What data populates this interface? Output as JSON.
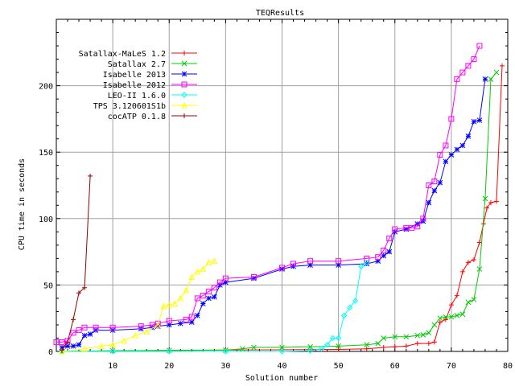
{
  "chart_data": {
    "type": "line",
    "title": "TEQResults",
    "xlabel": "Solution number",
    "ylabel": "CPU time in seconds",
    "xlim": [
      0,
      80
    ],
    "ylim": [
      0,
      250
    ],
    "x_ticks": [
      10,
      20,
      30,
      40,
      50,
      60,
      70,
      80
    ],
    "y_ticks": [
      0,
      50,
      100,
      150,
      200
    ],
    "grid": true,
    "legend_position": "top-left",
    "series": [
      {
        "name": "Satallax-MaLeS 1.2",
        "color": "#ff0000",
        "marker": "plus",
        "points": [
          [
            1,
            0
          ],
          [
            10,
            0.5
          ],
          [
            20,
            0.8
          ],
          [
            30,
            1
          ],
          [
            40,
            1.2
          ],
          [
            50,
            1.5
          ],
          [
            55,
            2
          ],
          [
            58,
            3
          ],
          [
            60,
            3.5
          ],
          [
            62,
            4
          ],
          [
            64,
            6
          ],
          [
            66,
            6
          ],
          [
            67,
            7
          ],
          [
            68,
            22
          ],
          [
            69,
            24
          ],
          [
            70,
            35
          ],
          [
            71,
            42
          ],
          [
            72,
            60
          ],
          [
            73,
            67
          ],
          [
            74,
            69
          ],
          [
            75,
            82
          ],
          [
            75.7,
            96
          ],
          [
            76.3,
            108
          ],
          [
            77,
            112
          ],
          [
            78,
            113
          ],
          [
            79,
            215
          ]
        ]
      },
      {
        "name": "Satallax 2.7",
        "color": "#00cc00",
        "marker": "cross",
        "points": [
          [
            1,
            0
          ],
          [
            10,
            0.5
          ],
          [
            20,
            0.8
          ],
          [
            30,
            1
          ],
          [
            33,
            2
          ],
          [
            35,
            3
          ],
          [
            40,
            3
          ],
          [
            45,
            3.5
          ],
          [
            50,
            4
          ],
          [
            55,
            5
          ],
          [
            57,
            6
          ],
          [
            58,
            10
          ],
          [
            60,
            11
          ],
          [
            62,
            11
          ],
          [
            64,
            12
          ],
          [
            65,
            12.5
          ],
          [
            66,
            14
          ],
          [
            67,
            20
          ],
          [
            68,
            25
          ],
          [
            69,
            26
          ],
          [
            70,
            26
          ],
          [
            71,
            27
          ],
          [
            72,
            28
          ],
          [
            73,
            37
          ],
          [
            74,
            39
          ],
          [
            75,
            62
          ],
          [
            76,
            115
          ],
          [
            77,
            205
          ],
          [
            78,
            210
          ]
        ]
      },
      {
        "name": "Isabelle 2013",
        "color": "#0000ff",
        "marker": "star",
        "points": [
          [
            1,
            3
          ],
          [
            2,
            4
          ],
          [
            3,
            4
          ],
          [
            4,
            5
          ],
          [
            5,
            12
          ],
          [
            6,
            13
          ],
          [
            7,
            16
          ],
          [
            10,
            16
          ],
          [
            15,
            17
          ],
          [
            17,
            18
          ],
          [
            18,
            19
          ],
          [
            20,
            20
          ],
          [
            22,
            21
          ],
          [
            24,
            22
          ],
          [
            25,
            27
          ],
          [
            26,
            36
          ],
          [
            27,
            40
          ],
          [
            28,
            41
          ],
          [
            29,
            50
          ],
          [
            30,
            52
          ],
          [
            35,
            55
          ],
          [
            40,
            62
          ],
          [
            42,
            64
          ],
          [
            45,
            65
          ],
          [
            50,
            65
          ],
          [
            55,
            66
          ],
          [
            57,
            68
          ],
          [
            58,
            72
          ],
          [
            59,
            75
          ],
          [
            60,
            90
          ],
          [
            62,
            92
          ],
          [
            64,
            96
          ],
          [
            65,
            98
          ],
          [
            66,
            112
          ],
          [
            67,
            121
          ],
          [
            68,
            127
          ],
          [
            69,
            143
          ],
          [
            70,
            148
          ],
          [
            71,
            152
          ],
          [
            72,
            155
          ],
          [
            73,
            162
          ],
          [
            74,
            173
          ],
          [
            75,
            174
          ],
          [
            76,
            205
          ]
        ]
      },
      {
        "name": "Isabelle 2012",
        "color": "#ff00ff",
        "marker": "square",
        "points": [
          [
            0,
            7
          ],
          [
            1,
            7
          ],
          [
            2,
            8
          ],
          [
            3,
            14
          ],
          [
            4,
            16
          ],
          [
            5,
            18
          ],
          [
            7,
            18
          ],
          [
            10,
            18
          ],
          [
            15,
            19
          ],
          [
            17,
            20
          ],
          [
            18,
            21
          ],
          [
            20,
            23
          ],
          [
            23,
            24
          ],
          [
            24,
            26
          ],
          [
            25,
            40
          ],
          [
            26,
            42
          ],
          [
            27,
            45
          ],
          [
            28,
            48
          ],
          [
            29,
            52
          ],
          [
            30,
            55
          ],
          [
            35,
            56
          ],
          [
            40,
            63
          ],
          [
            42,
            66
          ],
          [
            45,
            68
          ],
          [
            50,
            68
          ],
          [
            55,
            70
          ],
          [
            57,
            71
          ],
          [
            58,
            76
          ],
          [
            59,
            85
          ],
          [
            60,
            92
          ],
          [
            62,
            93
          ],
          [
            63,
            93
          ],
          [
            64,
            94
          ],
          [
            65,
            100
          ],
          [
            66,
            125
          ],
          [
            67,
            128
          ],
          [
            68,
            148
          ],
          [
            69,
            155
          ],
          [
            70,
            175
          ],
          [
            71,
            205
          ],
          [
            72,
            210
          ],
          [
            73,
            215
          ],
          [
            74,
            220
          ],
          [
            75,
            230
          ]
        ]
      },
      {
        "name": "LEO-II 1.6.0",
        "color": "#00ffff",
        "marker": "diamond",
        "points": [
          [
            1,
            0
          ],
          [
            10,
            0
          ],
          [
            20,
            0
          ],
          [
            30,
            0
          ],
          [
            40,
            0
          ],
          [
            45,
            0.5
          ],
          [
            47,
            2
          ],
          [
            48,
            5
          ],
          [
            49,
            10
          ],
          [
            50,
            10
          ],
          [
            51,
            27
          ],
          [
            52,
            33
          ],
          [
            53,
            38
          ],
          [
            54,
            64
          ],
          [
            55,
            67
          ]
        ]
      },
      {
        "name": "TPS 3.120601S1b",
        "color": "#ffff00",
        "marker": "triangle",
        "points": [
          [
            1,
            0
          ],
          [
            5,
            2
          ],
          [
            8,
            4
          ],
          [
            10,
            5
          ],
          [
            12,
            8
          ],
          [
            14,
            12
          ],
          [
            16,
            15
          ],
          [
            18,
            20
          ],
          [
            19,
            34
          ],
          [
            20,
            35
          ],
          [
            21,
            36
          ],
          [
            22,
            40
          ],
          [
            23,
            46
          ],
          [
            24,
            56
          ],
          [
            25,
            60
          ],
          [
            26,
            62
          ],
          [
            27,
            67
          ],
          [
            28,
            68
          ]
        ]
      },
      {
        "name": "cocATP 0.1.8",
        "color": "#990000",
        "marker": "plus",
        "points": [
          [
            1,
            1
          ],
          [
            2,
            7
          ],
          [
            3,
            24
          ],
          [
            4,
            44
          ],
          [
            5,
            48
          ],
          [
            6,
            132
          ]
        ]
      }
    ]
  }
}
